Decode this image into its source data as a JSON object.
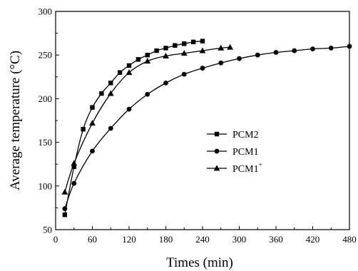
{
  "chart_data": {
    "type": "line",
    "xlabel": "Times (min)",
    "ylabel": "Average temperature (°C)",
    "xlim": [
      0,
      480
    ],
    "ylim": [
      50,
      300
    ],
    "xticks": [
      0,
      60,
      120,
      180,
      240,
      300,
      360,
      420,
      480
    ],
    "yticks": [
      50,
      100,
      150,
      200,
      250,
      300
    ],
    "grid": false,
    "legend_position": "center-right",
    "series": [
      {
        "name": "PCM2",
        "marker": "square",
        "x": [
          15,
          30,
          45,
          60,
          75,
          90,
          105,
          120,
          135,
          150,
          165,
          180,
          195,
          210,
          225,
          240
        ],
        "y": [
          67,
          122,
          165,
          190,
          206,
          218,
          230,
          238,
          245,
          250,
          255,
          258,
          261,
          263,
          265,
          266
        ]
      },
      {
        "name": "PCM1",
        "marker": "circle",
        "x": [
          15,
          30,
          60,
          90,
          120,
          150,
          180,
          210,
          240,
          270,
          300,
          330,
          360,
          390,
          420,
          450,
          480
        ],
        "y": [
          74,
          103,
          140,
          166,
          188,
          205,
          218,
          228,
          235,
          241,
          246,
          250,
          253,
          255,
          257,
          258,
          260
        ]
      },
      {
        "name": "PCM1",
        "name_superscript": "+",
        "marker": "triangle",
        "x": [
          15,
          30,
          60,
          90,
          120,
          150,
          180,
          210,
          240,
          270,
          285
        ],
        "y": [
          93,
          126,
          172,
          206,
          230,
          243,
          249,
          252,
          255,
          258,
          259
        ]
      }
    ]
  }
}
